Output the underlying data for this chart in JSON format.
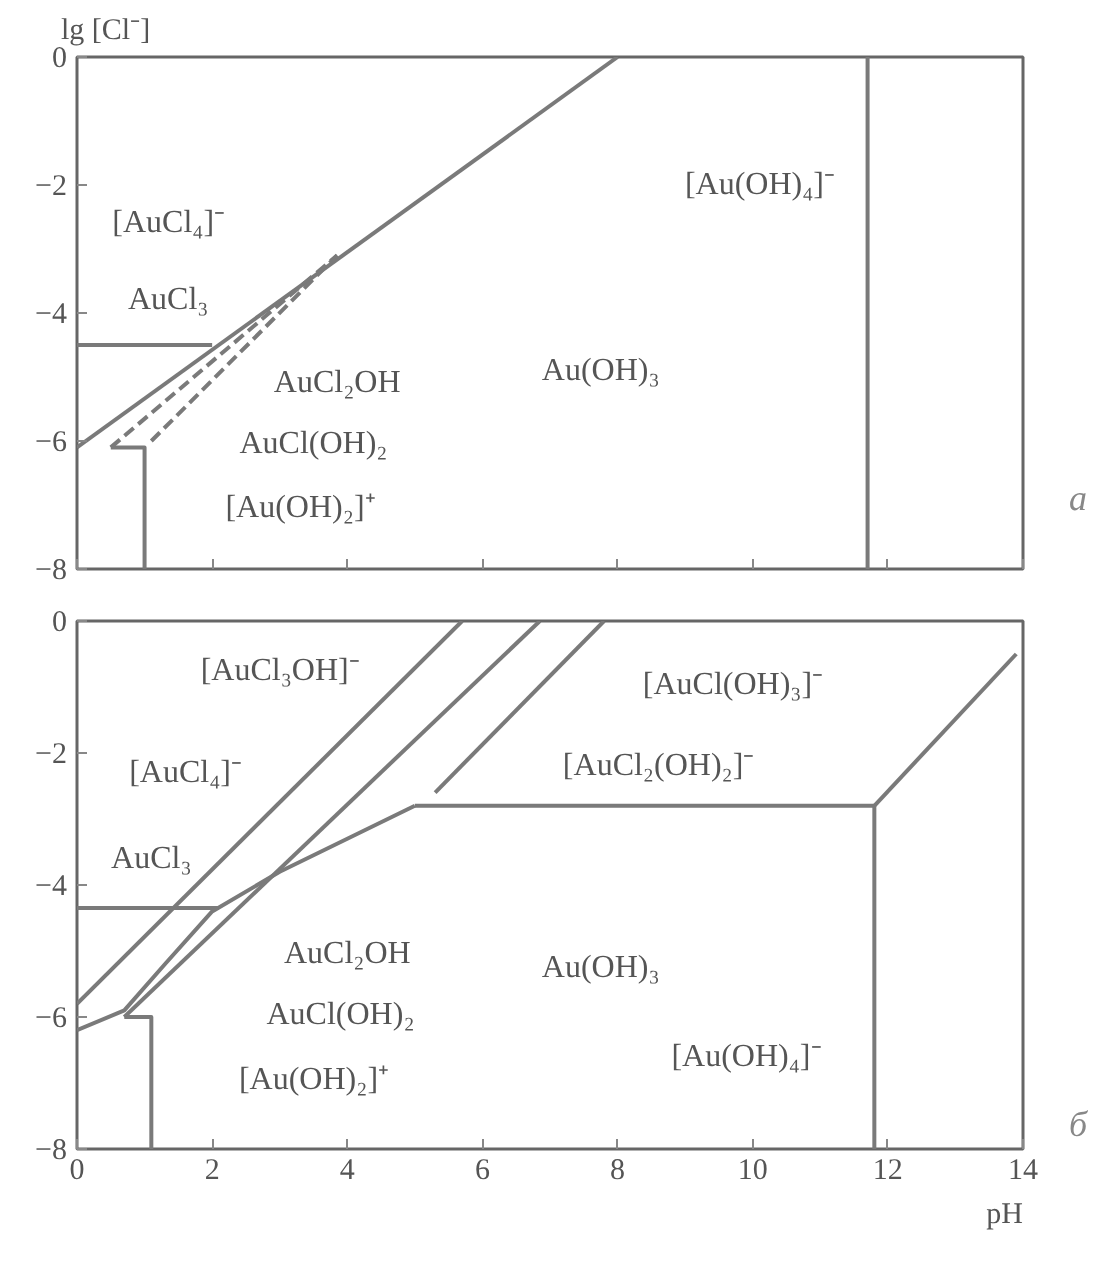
{
  "chart_data": [
    {
      "type": "line",
      "ylabel": "lg [Cl⁻]",
      "xlim": [
        0,
        14
      ],
      "ylim": [
        -8,
        0
      ],
      "xticks": [
        0,
        2,
        4,
        6,
        8,
        10,
        12,
        14
      ],
      "yticks": [
        0,
        -2,
        -4,
        -6,
        -8
      ],
      "tick_labels": "y",
      "series": [
        {
          "color": "#7a7a7a",
          "x": [
            0,
            8
          ],
          "values": [
            -6.1,
            0
          ]
        },
        {
          "color": "#7a7a7a",
          "x": [
            0.5,
            3.85
          ],
          "values": [
            -6.1,
            -3.1
          ],
          "line_style": "dashed"
        },
        {
          "color": "#7a7a7a",
          "x": [
            1.1,
            3.85
          ],
          "values": [
            -6.0,
            -3.1
          ],
          "line_style": "dashed"
        },
        {
          "color": "#7a7a7a",
          "x": [
            0,
            2
          ],
          "values": [
            -4.5,
            -4.5
          ]
        },
        {
          "color": "#7a7a7a",
          "x": [
            0.5,
            1,
            1
          ],
          "values": [
            -6.1,
            -6.1,
            -8
          ]
        },
        {
          "color": "#7a7a7a",
          "x": [
            11.7,
            11.7
          ],
          "values": [
            -8,
            0
          ]
        }
      ],
      "annotations": [
        "[AuCl₄]⁻",
        "[Au(OH)₄]⁻",
        "AuCl₃",
        "AuCl₂OH",
        "AuCl(OH)₂",
        "[Au(OH)₂]⁺",
        "Au(OH)₃",
        "а"
      ]
    },
    {
      "type": "line",
      "xlabel": "pH",
      "xlim": [
        0,
        14
      ],
      "ylim": [
        -8,
        0
      ],
      "xticks": [
        0,
        2,
        4,
        6,
        8,
        10,
        12,
        14
      ],
      "yticks": [
        0,
        -2,
        -4,
        -6,
        -8
      ],
      "series": [
        {
          "color": "#7a7a7a",
          "x": [
            0,
            5.7
          ],
          "values": [
            -5.8,
            0
          ]
        },
        {
          "color": "#7a7a7a",
          "x": [
            0.7,
            6.85
          ],
          "values": [
            -6.0,
            0
          ]
        },
        {
          "color": "#7a7a7a",
          "x": [
            5.3,
            7.8
          ],
          "values": [
            -2.6,
            0
          ]
        },
        {
          "color": "#7a7a7a",
          "x": [
            0,
            0.7,
            1.3,
            2,
            3,
            4,
            5
          ],
          "values": [
            -6.2,
            -5.9,
            -5.2,
            -4.4,
            -3.8,
            -3.3,
            -2.8
          ]
        },
        {
          "color": "#7a7a7a",
          "x": [
            5,
            11.8,
            11.8
          ],
          "values": [
            -2.8,
            -2.8,
            -8
          ]
        },
        {
          "color": "#7a7a7a",
          "x": [
            11.8,
            13.9
          ],
          "values": [
            -2.8,
            -0.5
          ]
        },
        {
          "color": "#7a7a7a",
          "x": [
            0,
            2.1
          ],
          "values": [
            -4.35,
            -4.35
          ]
        },
        {
          "color": "#7a7a7a",
          "x": [
            0.7,
            1.1,
            1.1
          ],
          "values": [
            -6.0,
            -6.0,
            -8
          ]
        }
      ],
      "annotations": [
        "[AuCl₃OH]⁻",
        "[AuCl(OH)₃]⁻",
        "[AuCl₄]⁻",
        "[AuCl₂(OH)₂]⁻",
        "AuCl₃",
        "AuCl₂OH",
        "Au(OH)₃",
        "AuCl(OH)₂",
        "[Au(OH)₄]⁻",
        "[Au(OH)₂]⁺",
        "б"
      ]
    }
  ]
}
